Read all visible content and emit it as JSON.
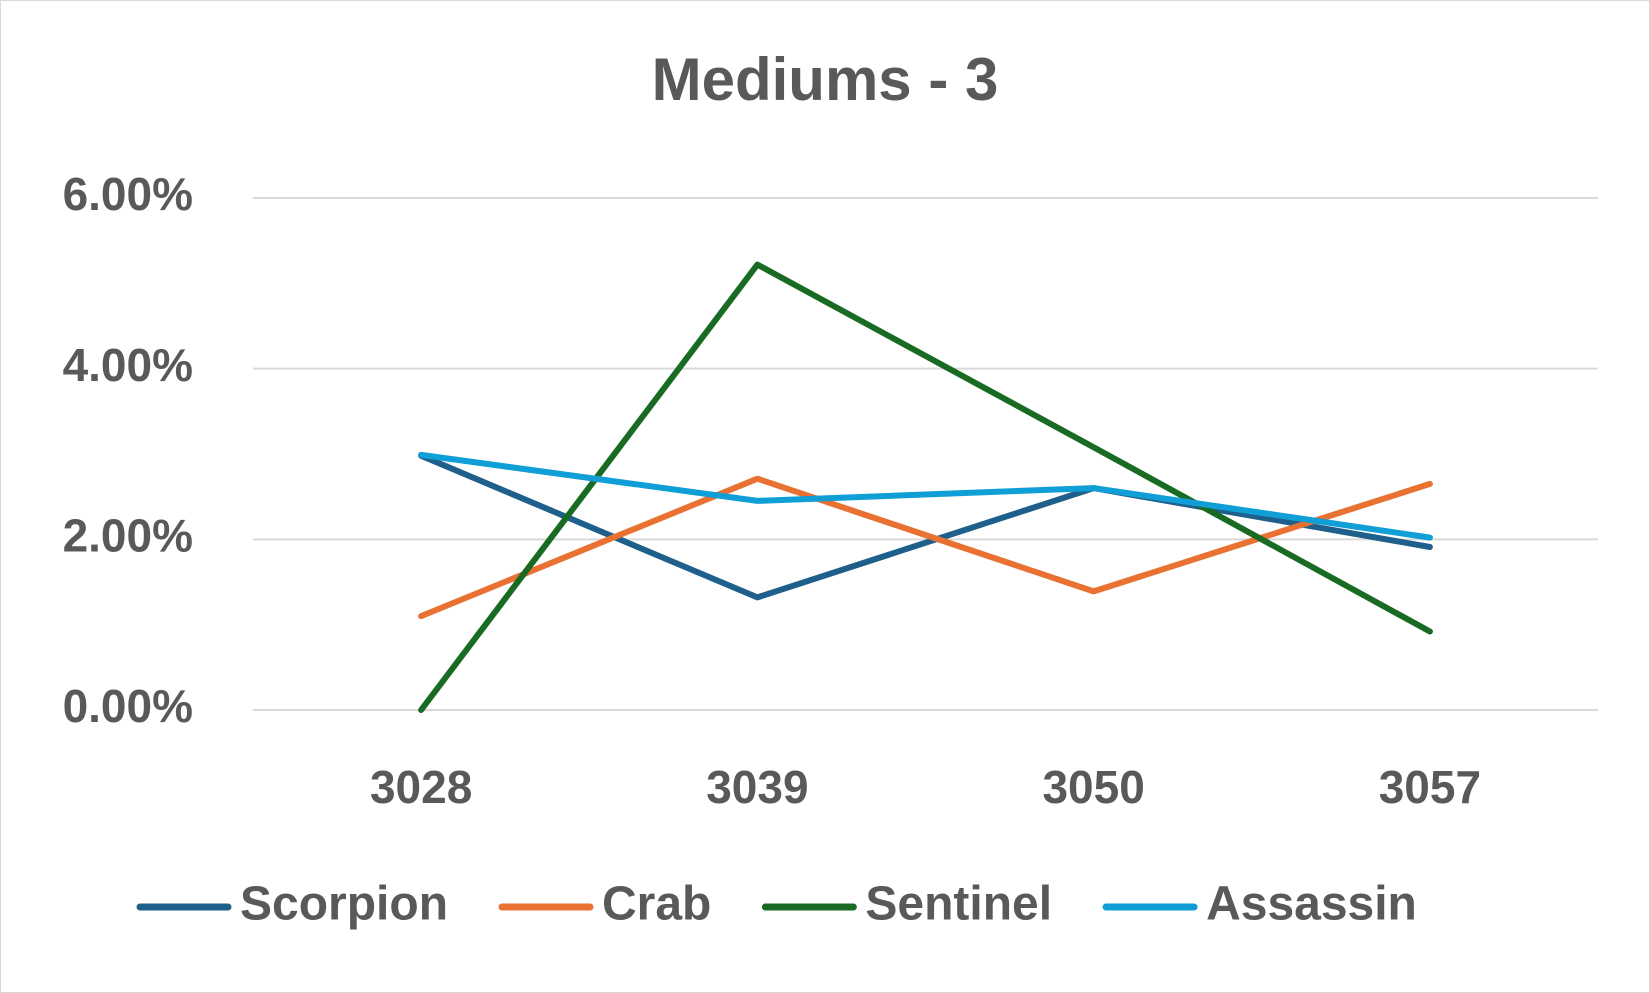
{
  "chart_data": {
    "type": "line",
    "title": "Mediums - 3",
    "categories": [
      "3028",
      "3039",
      "3050",
      "3057"
    ],
    "series": [
      {
        "name": "Scorpion",
        "color": "#1f5f8b",
        "values": [
          2.98,
          1.32,
          2.6,
          1.91
        ]
      },
      {
        "name": "Crab",
        "color": "#e97132",
        "values": [
          1.1,
          2.71,
          1.39,
          2.65
        ]
      },
      {
        "name": "Sentinel",
        "color": "#196b24",
        "values": [
          0,
          5.22,
          3.08,
          0.92
        ]
      },
      {
        "name": "Assassin",
        "color": "#0f9ed5",
        "values": [
          2.99,
          2.45,
          2.6,
          2.02
        ]
      }
    ],
    "ylim": [
      0,
      6
    ],
    "yticks": [
      {
        "value": 0,
        "label": "0.00%"
      },
      {
        "value": 2,
        "label": "2.00%"
      },
      {
        "value": 4,
        "label": "4.00%"
      },
      {
        "value": 6,
        "label": "6.00%"
      }
    ],
    "grid": true,
    "legend": "bottom"
  }
}
